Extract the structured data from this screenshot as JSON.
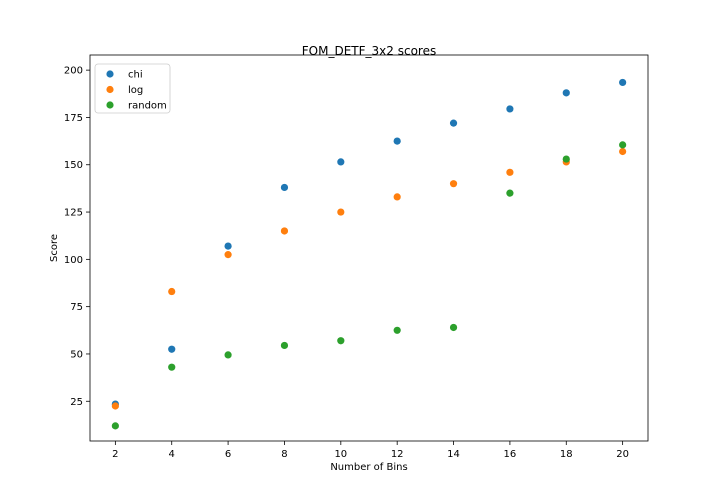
{
  "chart_data": {
    "type": "scatter",
    "title": "FOM_DETF_3x2 scores",
    "xlabel": "Number of Bins",
    "ylabel": "Score",
    "x": [
      2,
      4,
      6,
      8,
      10,
      12,
      14,
      16,
      18,
      20
    ],
    "xlim": [
      1.1,
      20.9
    ],
    "ylim": [
      4,
      208
    ],
    "xticks": [
      2,
      4,
      6,
      8,
      10,
      12,
      14,
      16,
      18,
      20
    ],
    "yticks": [
      25,
      50,
      75,
      100,
      125,
      150,
      175,
      200
    ],
    "grid": false,
    "legend_position": "top-left",
    "series": [
      {
        "name": "chi",
        "color": "#1f77b4",
        "values": [
          23.5,
          52.5,
          107,
          138,
          151.5,
          162.5,
          172,
          179.5,
          188,
          193.5
        ]
      },
      {
        "name": "log",
        "color": "#ff7f0e",
        "values": [
          22.5,
          83,
          102.5,
          115,
          125,
          133,
          140,
          146,
          151.5,
          157
        ]
      },
      {
        "name": "random",
        "color": "#2ca02c",
        "values": [
          12,
          43,
          49.5,
          54.5,
          57,
          62.5,
          64,
          135,
          153,
          160.5
        ]
      }
    ]
  }
}
